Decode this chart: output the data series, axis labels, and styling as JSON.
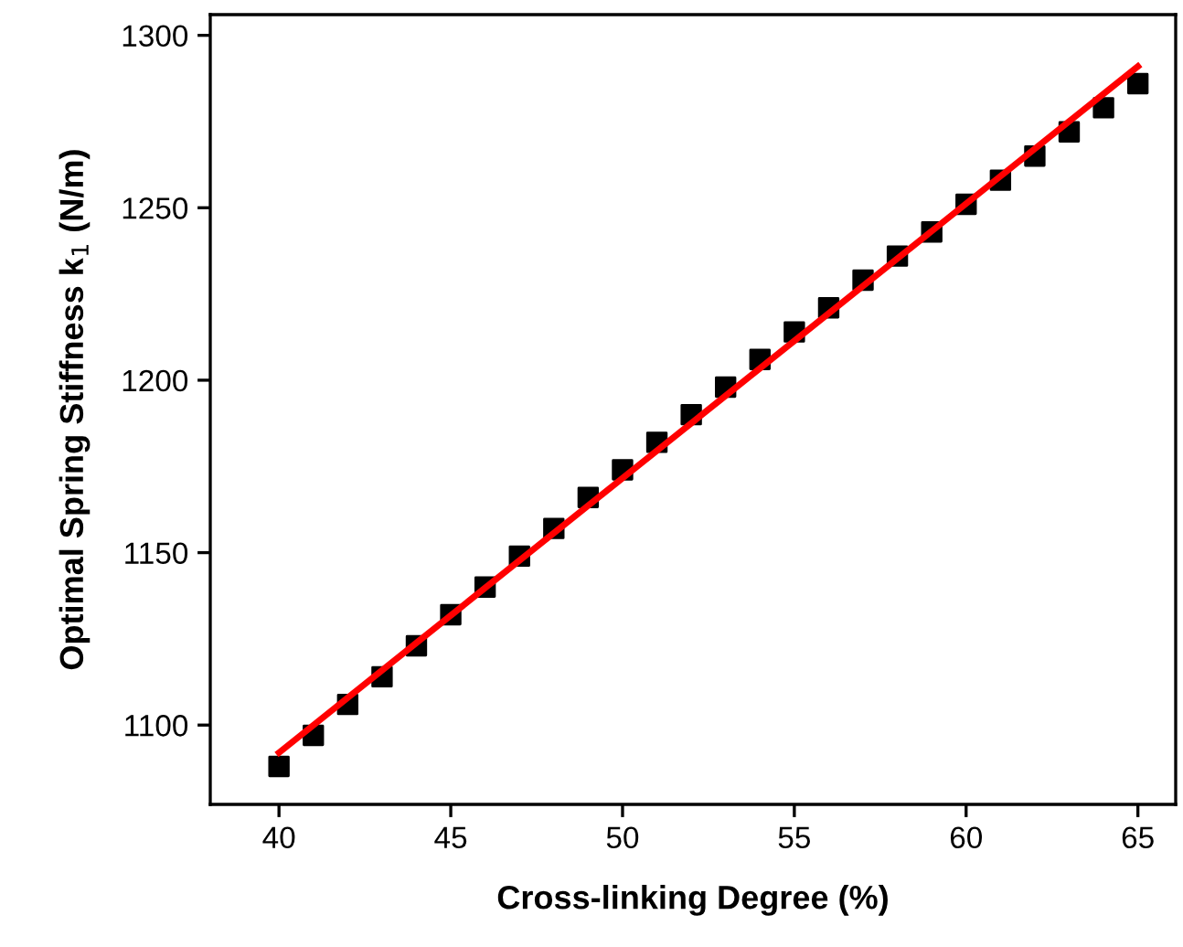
{
  "chart_data": {
    "type": "scatter",
    "xlabel": "Cross-linking Degree (%)",
    "ylabel": "Optimal Spring Stiffness k$_{1}$ (N/m)",
    "series": [
      {
        "color": "#000000",
        "marker": "square",
        "x": [
          40,
          41,
          42,
          43,
          44,
          45,
          46,
          47,
          48,
          49,
          50,
          51,
          52,
          53,
          54,
          55,
          56,
          57,
          58,
          59,
          60,
          61,
          62,
          63,
          64,
          65
        ],
        "values": [
          1088,
          1097,
          1106,
          1114,
          1123,
          1132,
          1140,
          1149,
          1157,
          1166,
          1174,
          1182,
          1190,
          1198,
          1206,
          1214,
          1221,
          1229,
          1236,
          1243,
          1251,
          1258,
          1265,
          1272,
          1279,
          1286
        ]
      },
      {
        "type": "line",
        "color": "#ff0000",
        "line_style": "solid",
        "x": [
          40,
          65
        ],
        "values": [
          1092,
          1291
        ]
      }
    ],
    "xlim": [
      38,
      66.1
    ],
    "ylim": [
      1077,
      1306
    ],
    "xticks": [
      40,
      45,
      50,
      55,
      60,
      65
    ],
    "yticks": [
      1100,
      1150,
      1200,
      1250,
      1300
    ],
    "grid": false,
    "legend": false
  }
}
